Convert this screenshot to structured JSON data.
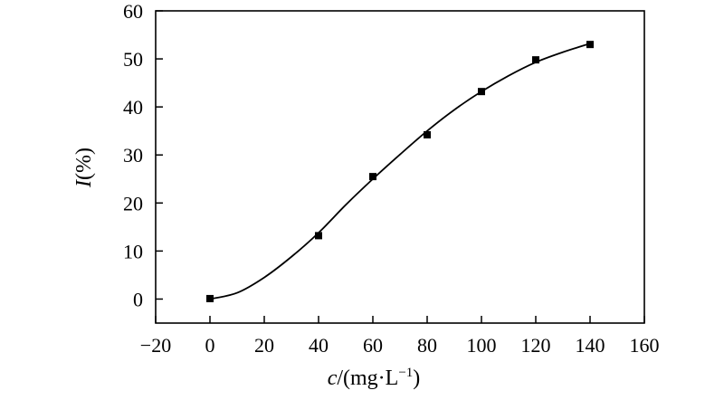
{
  "chart_data": {
    "type": "scatter",
    "xlabel_var": "c",
    "xlabel_unit": "/(mg·L",
    "xlabel_sup": "−1",
    "xlabel_close": ")",
    "ylabel_var": "I",
    "ylabel_unit": "(%)",
    "xlim": [
      -20,
      160
    ],
    "ylim": [
      -5,
      60
    ],
    "xticks": [
      -20,
      0,
      20,
      40,
      60,
      80,
      100,
      120,
      140,
      160
    ],
    "xtick_labels": [
      "−20",
      "0",
      "20",
      "40",
      "60",
      "80",
      "100",
      "120",
      "140",
      "160"
    ],
    "yticks": [
      0,
      10,
      20,
      30,
      40,
      50,
      60
    ],
    "ytick_labels": [
      "0",
      "10",
      "20",
      "30",
      "40",
      "50",
      "60"
    ],
    "grid": false,
    "series": [
      {
        "marker": "square",
        "x": [
          0,
          40,
          60,
          80,
          100,
          120,
          140
        ],
        "y": [
          0.1,
          13.2,
          25.5,
          34.2,
          43.2,
          49.8,
          53.0
        ]
      }
    ],
    "fit_curve": {
      "x": [
        0,
        10,
        20,
        30,
        40,
        50,
        60,
        70,
        80,
        90,
        100,
        110,
        120,
        130,
        140
      ],
      "y": [
        0,
        1.3,
        4.5,
        8.8,
        13.8,
        19.6,
        25.0,
        30.1,
        35.0,
        39.4,
        43.2,
        46.5,
        49.3,
        51.4,
        53.2
      ]
    },
    "colors": {
      "marker": "#000000",
      "line": "#000000",
      "axis": "#000000"
    }
  }
}
